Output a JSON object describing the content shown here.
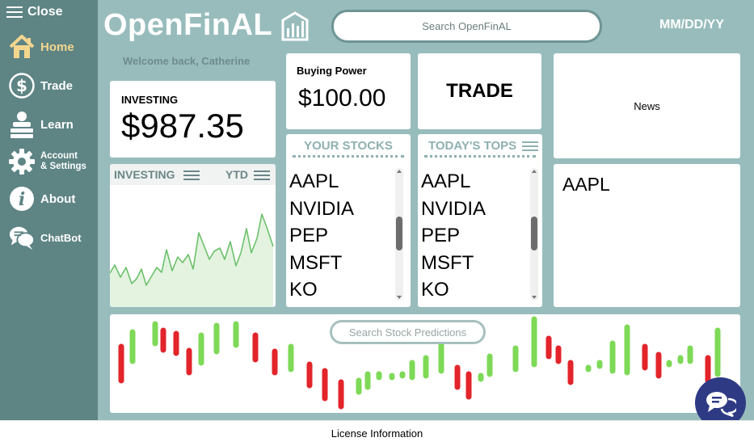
{
  "sidebar": {
    "close_label": "Close",
    "items": [
      {
        "label": "Home",
        "icon": "home-icon",
        "active": true
      },
      {
        "label": "Trade",
        "icon": "dollar-icon"
      },
      {
        "label": "Learn",
        "icon": "learn-icon"
      },
      {
        "label_line1": "Account",
        "label_line2": "& Settings",
        "icon": "gear-icon"
      },
      {
        "label": "About",
        "icon": "info-icon"
      },
      {
        "label": "ChatBot",
        "icon": "chat-icon"
      }
    ]
  },
  "header": {
    "logo_text": "OpenFinAL",
    "search_placeholder": "Search OpenFinAL",
    "date": "MM/DD/YY"
  },
  "welcome": "Welcome back, Catherine",
  "investing": {
    "label": "INVESTING",
    "amount": "$987.35"
  },
  "buying_power": {
    "label": "Buying Power",
    "amount": "$100.00"
  },
  "trade_button": "TRADE",
  "news": {
    "label": "News"
  },
  "selected_stock": "AAPL",
  "chart": {
    "title": "INVESTING",
    "period": "YTD"
  },
  "your_stocks": {
    "title": "YOUR STOCKS",
    "items": [
      "AAPL",
      "NVIDIA",
      "PEP",
      "MSFT",
      "KO"
    ]
  },
  "todays_tops": {
    "title": "TODAY'S TOPS",
    "items": [
      "AAPL",
      "NVIDIA",
      "PEP",
      "MSFT",
      "KO"
    ]
  },
  "predictions": {
    "search_placeholder": "Search Stock Predictions"
  },
  "footer": {
    "license": "License Information"
  },
  "colors": {
    "sidebar": "#5e8484",
    "background": "#98bcbc",
    "accent_active": "#f3d68e",
    "chart_line": "#6cc06c",
    "candle_up": "#7ed957",
    "candle_down": "#e3242b",
    "chatbot": "#2e3a84"
  }
}
